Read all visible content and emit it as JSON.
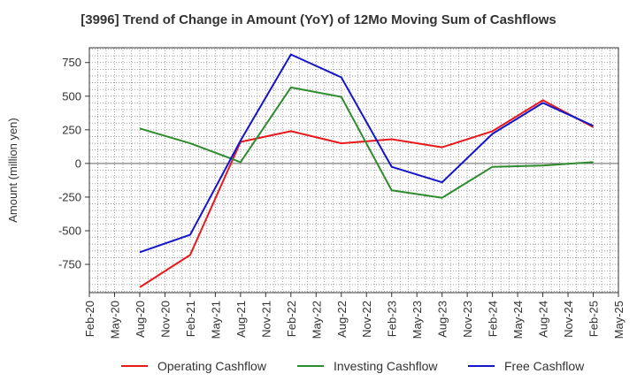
{
  "chart_data": {
    "type": "line",
    "title": "[3996]  Trend of Change in Amount (YoY) of 12Mo Moving Sum of Cashflows",
    "ylabel": "Amount (million yen)",
    "xlabel": "",
    "ylim": [
      -960,
      860
    ],
    "yticks": [
      750,
      500,
      250,
      0,
      -250,
      -500,
      -750
    ],
    "ytick_labels": [
      "750",
      "500",
      "250",
      "0",
      "-250",
      "-500",
      "-750"
    ],
    "categories": [
      "Feb-20",
      "May-20",
      "Aug-20",
      "Nov-20",
      "Feb-21",
      "May-21",
      "Aug-21",
      "Nov-21",
      "Feb-22",
      "May-22",
      "Aug-22",
      "Nov-22",
      "Feb-23",
      "May-23",
      "Aug-23",
      "Nov-23",
      "Feb-24",
      "May-24",
      "Aug-24",
      "Nov-24",
      "Feb-25",
      "May-25"
    ],
    "series": [
      {
        "name": "Operating Cashflow",
        "color": "#e8191c",
        "values": [
          null,
          null,
          -920,
          null,
          -680,
          null,
          160,
          null,
          240,
          null,
          150,
          null,
          180,
          null,
          120,
          null,
          240,
          null,
          470,
          null,
          270,
          null
        ]
      },
      {
        "name": "Investing Cashflow",
        "color": "#2e8b2e",
        "values": [
          null,
          null,
          260,
          null,
          150,
          null,
          10,
          null,
          565,
          null,
          495,
          null,
          -200,
          null,
          -255,
          null,
          -25,
          null,
          -15,
          null,
          10,
          null
        ]
      },
      {
        "name": "Free Cashflow",
        "color": "#1515cc",
        "values": [
          null,
          null,
          -660,
          null,
          -530,
          null,
          170,
          null,
          810,
          null,
          640,
          null,
          -25,
          null,
          -140,
          null,
          220,
          null,
          450,
          null,
          280,
          null
        ]
      }
    ],
    "grid": true,
    "legend": "bottom"
  }
}
